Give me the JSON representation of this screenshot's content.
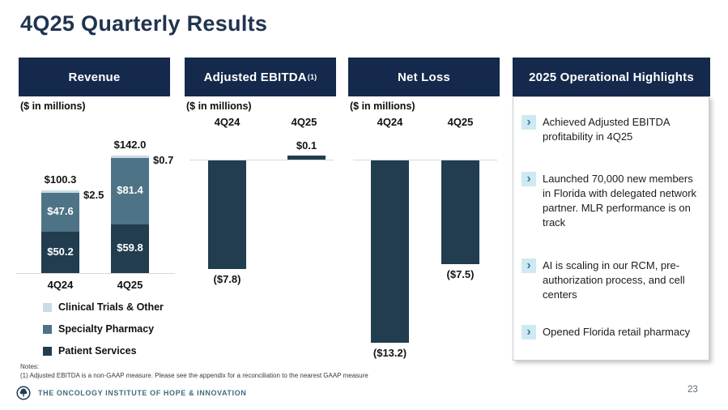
{
  "title": "4Q25 Quarterly Results",
  "page_number": "23",
  "colors": {
    "header_bar": "#14294b",
    "title_text": "#20344f",
    "patient_services": "#213d4f",
    "specialty_pharmacy": "#4e7386",
    "clinical_trials": "#c9dce4",
    "bullet_chip_bg": "#cfe9f2",
    "bullet_chevron": "#2e7f99",
    "baseline_gray": "#d8d8d8",
    "company_text": "#3f6b7d"
  },
  "panels": {
    "revenue": {
      "header": "Revenue",
      "units": "($ in millions)"
    },
    "ebitda": {
      "header_main": "Adjusted EBITDA",
      "header_sup": "(1)",
      "units": "($ in millions)"
    },
    "net_loss": {
      "header": "Net Loss",
      "units": "($ in millions)"
    },
    "highlights": {
      "header": "2025 Operational Highlights",
      "bullet_icon": "›",
      "items": [
        "Achieved Adjusted EBITDA profitability in 4Q25",
        "Launched 70,000 new members in Florida with delegated network partner. MLR performance is on track",
        "AI is scaling in our RCM, pre-authorization process, and cell centers",
        "Opened Florida retail pharmacy"
      ]
    }
  },
  "chart_data": [
    {
      "type": "bar",
      "subtype": "stacked",
      "title": "Revenue",
      "units": "($ in millions)",
      "categories": [
        "4Q24",
        "4Q25"
      ],
      "series": [
        {
          "name": "Patient Services",
          "color": "#213d4f",
          "values": [
            50.2,
            59.8
          ]
        },
        {
          "name": "Specialty Pharmacy",
          "color": "#4e7386",
          "values": [
            47.6,
            81.4
          ]
        },
        {
          "name": "Clinical Trials & Other",
          "color": "#c9dce4",
          "values": [
            2.5,
            0.7
          ]
        }
      ],
      "totals": [
        100.3,
        142.0
      ],
      "total_labels": [
        "$100.3",
        "$142.0"
      ],
      "segment_labels": [
        [
          "$50.2",
          "$59.8"
        ],
        [
          "$47.6",
          "$81.4"
        ],
        [
          "$2.5",
          "$0.7"
        ]
      ],
      "legend": [
        {
          "label": "Clinical Trials & Other",
          "color": "#c9dce4"
        },
        {
          "label": "Specialty Pharmacy",
          "color": "#4e7386"
        },
        {
          "label": "Patient Services",
          "color": "#213d4f"
        }
      ],
      "baseline": 0,
      "grid": false,
      "legend_position": "bottom"
    },
    {
      "type": "bar",
      "title": "Adjusted EBITDA",
      "units": "($ in millions)",
      "categories": [
        "4Q24",
        "4Q25"
      ],
      "values": [
        -7.8,
        0.1
      ],
      "value_labels": [
        "($7.8)",
        "$0.1"
      ],
      "baseline": 0,
      "grid": false
    },
    {
      "type": "bar",
      "title": "Net Loss",
      "units": "($ in millions)",
      "categories": [
        "4Q24",
        "4Q25"
      ],
      "values": [
        -13.2,
        -7.5
      ],
      "value_labels": [
        "($13.2)",
        "($7.5)"
      ],
      "baseline": 0,
      "grid": false
    }
  ],
  "footer": {
    "notes_label": "Notes:",
    "note1": "(1) Adjusted EBITDA is a non-GAAP measure. Please see the appendix for a reconciliation to the nearest GAAP measure",
    "company": "THE ONCOLOGY INSTITUTE OF HOPE & INNOVATION",
    "logo": "tree-in-circle-icon"
  }
}
